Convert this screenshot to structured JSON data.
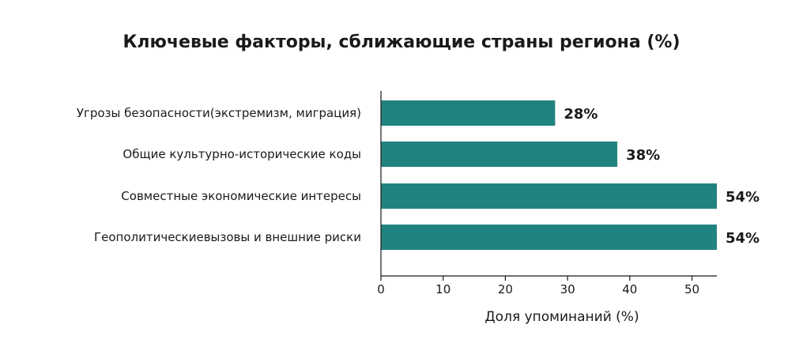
{
  "chart_data": {
    "type": "bar",
    "orientation": "horizontal",
    "title": "Ключевые факторы, сближающие страны региона (%)",
    "xlabel": "Доля упоминаний (%)",
    "ylabel": "",
    "categories": [
      "Угрозы безопасности(экстремизм, миграция)",
      "Общие культурно-исторические коды",
      "Совместные экономические интересы",
      "Геополитическиевызовы и внешние риски"
    ],
    "values": [
      28,
      38,
      54,
      54
    ],
    "data_labels": [
      "28%",
      "38%",
      "54%",
      "54%"
    ],
    "xlim": [
      0,
      54
    ],
    "xticks": [
      0,
      10,
      20,
      30,
      40,
      50
    ],
    "grid": false,
    "bar_color": "#21837f"
  }
}
